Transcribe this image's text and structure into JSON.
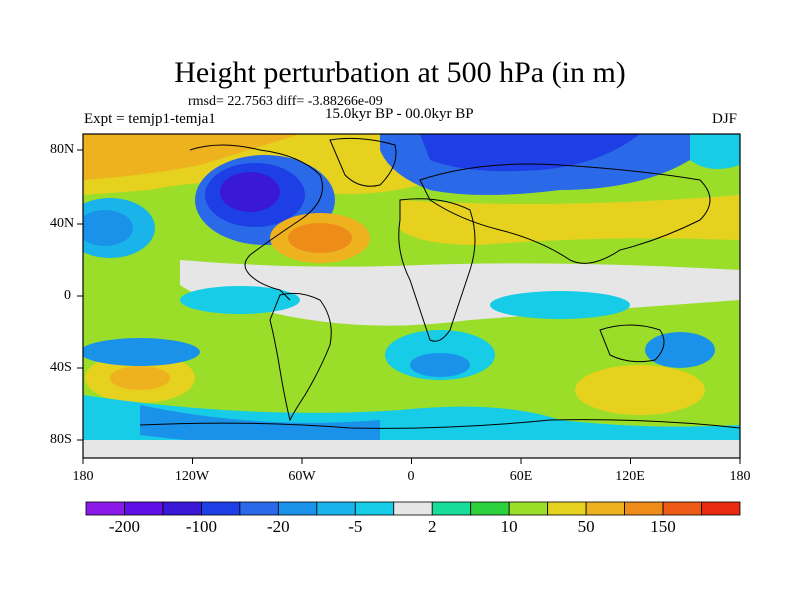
{
  "title": "Height perturbation at 500 hPa (in m)",
  "stats": "rmsd= 22.7563 diff= -3.88266e-09",
  "experiment": "Expt = temjp1-temja1",
  "period": "15.0kyr BP - 00.0kyr BP",
  "season": "DJF",
  "lat_labels": [
    "80N",
    "40N",
    "0",
    "40S",
    "80S"
  ],
  "lon_labels": [
    "180",
    "120W",
    "60W",
    "0",
    "60E",
    "120E",
    "180"
  ],
  "colorbar": {
    "colors": [
      "#8b1ae8",
      "#6010e6",
      "#3a18d8",
      "#1e3ee6",
      "#2a6ae8",
      "#1a92ea",
      "#18b4ea",
      "#16cce6",
      "#e6e6e6",
      "#18dc9a",
      "#2cd23e",
      "#9ade2a",
      "#e6d21e",
      "#eeb21e",
      "#ee8c1a",
      "#ee5a18",
      "#e82a10"
    ],
    "labels": [
      "-200",
      "-100",
      "-20",
      "-5",
      "2",
      "10",
      "50",
      "150"
    ]
  }
}
